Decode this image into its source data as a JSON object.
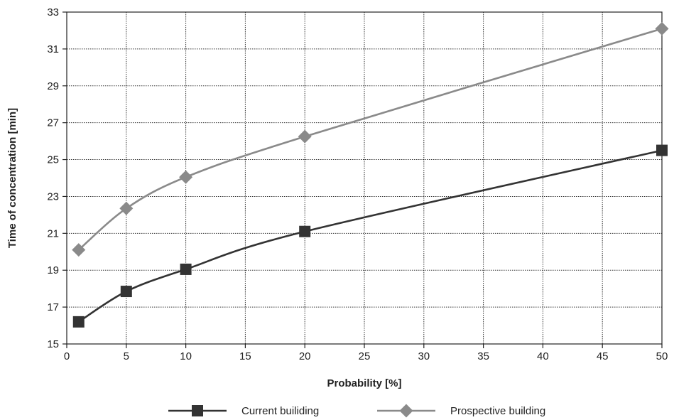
{
  "chart_data": {
    "type": "line",
    "title": "",
    "xlabel": "Probability [%]",
    "ylabel": "Time of concentration [min]",
    "xlim": [
      0,
      50
    ],
    "ylim": [
      15,
      33
    ],
    "x_ticks": [
      0,
      5,
      10,
      15,
      20,
      25,
      30,
      35,
      40,
      45,
      50
    ],
    "y_ticks": [
      15,
      17,
      19,
      21,
      23,
      25,
      27,
      29,
      31,
      33
    ],
    "grid": true,
    "legend_position": "bottom",
    "series": [
      {
        "name": "Current builiding",
        "marker": "square",
        "color": "#333333",
        "points": [
          {
            "x": 1,
            "y": 16.2
          },
          {
            "x": 5,
            "y": 17.85
          },
          {
            "x": 10,
            "y": 19.05
          },
          {
            "x": 20,
            "y": 21.1
          },
          {
            "x": 50,
            "y": 25.5
          }
        ]
      },
      {
        "name": "Prospective building",
        "marker": "diamond",
        "color": "#8a8a8a",
        "points": [
          {
            "x": 1,
            "y": 20.1
          },
          {
            "x": 5,
            "y": 22.35
          },
          {
            "x": 10,
            "y": 24.05
          },
          {
            "x": 20,
            "y": 26.25
          },
          {
            "x": 50,
            "y": 32.1
          }
        ]
      }
    ]
  }
}
